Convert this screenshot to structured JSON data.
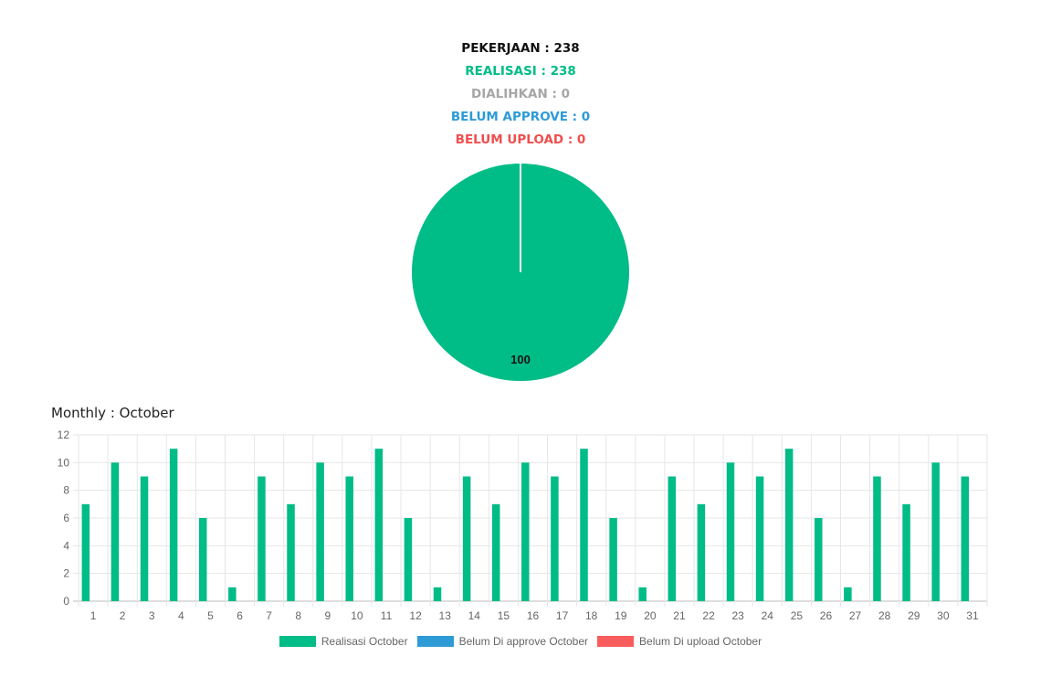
{
  "summary": {
    "pekerjaan": "PEKERJAAN : 238",
    "realisasi": "REALISASI : 238",
    "dialihkan": "DIALIHKAN : 0",
    "belum_approve": "BELUM APPROVE : 0",
    "belum_upload": "BELUM UPLOAD : 0"
  },
  "colors": {
    "realisasi": "#00bc87",
    "belum_approve": "#2e9bd6",
    "belum_upload": "#f95c5c",
    "dialihkan": "#a6a6a6"
  },
  "monthly_title": "Monthly : October",
  "chart_data": [
    {
      "type": "pie",
      "categories": [
        "Realisasi",
        "Dialihkan",
        "Belum Approve",
        "Belum Upload"
      ],
      "values": [
        100,
        0,
        0,
        0
      ],
      "data_labels": [
        "100"
      ]
    },
    {
      "type": "bar",
      "title": "Monthly : October",
      "categories": [
        "1",
        "2",
        "3",
        "4",
        "5",
        "6",
        "7",
        "8",
        "9",
        "10",
        "11",
        "12",
        "13",
        "14",
        "15",
        "16",
        "17",
        "18",
        "19",
        "20",
        "21",
        "22",
        "23",
        "24",
        "25",
        "26",
        "27",
        "28",
        "29",
        "30",
        "31"
      ],
      "series": [
        {
          "name": "Realisasi October",
          "color": "#00bc87",
          "values": [
            7,
            10,
            9,
            11,
            6,
            1,
            9,
            7,
            10,
            9,
            11,
            6,
            1,
            9,
            7,
            10,
            9,
            11,
            6,
            1,
            9,
            7,
            10,
            9,
            11,
            6,
            1,
            9,
            7,
            10,
            9
          ]
        },
        {
          "name": "Belum Di approve October",
          "color": "#2e9bd6",
          "values": [
            0,
            0,
            0,
            0,
            0,
            0,
            0,
            0,
            0,
            0,
            0,
            0,
            0,
            0,
            0,
            0,
            0,
            0,
            0,
            0,
            0,
            0,
            0,
            0,
            0,
            0,
            0,
            0,
            0,
            0,
            0
          ]
        },
        {
          "name": "Belum Di upload October",
          "color": "#f95c5c",
          "values": [
            0,
            0,
            0,
            0,
            0,
            0,
            0,
            0,
            0,
            0,
            0,
            0,
            0,
            0,
            0,
            0,
            0,
            0,
            0,
            0,
            0,
            0,
            0,
            0,
            0,
            0,
            0,
            0,
            0,
            0,
            0
          ]
        }
      ],
      "yticks": [
        "0",
        "2",
        "4",
        "6",
        "8",
        "10",
        "12"
      ],
      "ylim": [
        0,
        12
      ],
      "grid": true,
      "legend": "bottom"
    }
  ]
}
